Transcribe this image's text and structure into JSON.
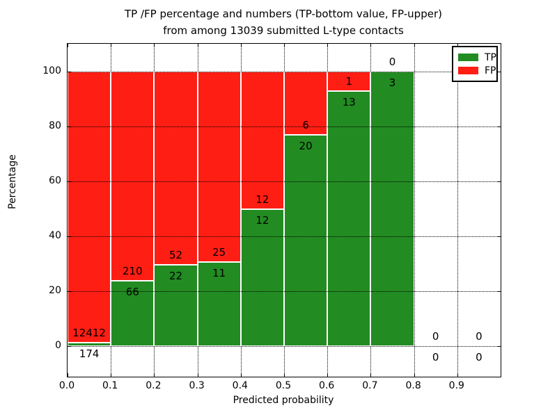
{
  "title": {
    "line1": "TP /FP percentage and numbers (TP-bottom value, FP-upper)",
    "line2": "from among 13039 submitted L-type contacts"
  },
  "axes": {
    "xlabel": "Predicted probability",
    "ylabel": "Percentage",
    "x_tick_labels": [
      "0.0",
      "0.1",
      "0.2",
      "0.3",
      "0.4",
      "0.5",
      "0.6",
      "0.7",
      "0.8",
      "0.9"
    ],
    "y_tick_labels": [
      "0",
      "20",
      "40",
      "60",
      "80",
      "100"
    ]
  },
  "legend": {
    "items": [
      {
        "label": "TP",
        "color": "#228b22"
      },
      {
        "label": "FP",
        "color": "#ff1e14"
      }
    ]
  },
  "colors": {
    "tp": "#228b22",
    "fp": "#ff1e14",
    "grid": "#000000",
    "background": "#ffffff",
    "bar_edge": "#ffffff"
  },
  "chart_data": {
    "type": "bar",
    "stacked": true,
    "title": "TP /FP percentage and numbers (TP-bottom value, FP-upper) from among 13039 submitted L-type contacts",
    "xlabel": "Predicted probability",
    "ylabel": "Percentage",
    "xlim": [
      0.0,
      1.0
    ],
    "ylim": [
      -11,
      110
    ],
    "bin_width": 0.1,
    "bins_start": [
      0.0,
      0.1,
      0.2,
      0.3,
      0.4,
      0.5,
      0.6,
      0.7,
      0.8,
      0.9
    ],
    "grid": true,
    "legend_position": "upper right",
    "total_contacts": 13039,
    "series": [
      {
        "name": "TP",
        "color": "#228b22",
        "counts": [
          174,
          66,
          22,
          11,
          12,
          20,
          13,
          3,
          0,
          0
        ]
      },
      {
        "name": "FP",
        "color": "#ff1e14",
        "counts": [
          12412,
          210,
          52,
          25,
          12,
          6,
          1,
          0,
          0,
          0
        ]
      }
    ],
    "tp_percent_of_bin": [
      1.38,
      23.91,
      29.73,
      30.56,
      50.0,
      76.92,
      92.86,
      100.0,
      0.0,
      0.0
    ],
    "y_tick_values": [
      0,
      20,
      40,
      60,
      80,
      100
    ],
    "x_tick_values": [
      0.0,
      0.1,
      0.2,
      0.3,
      0.4,
      0.5,
      0.6,
      0.7,
      0.8,
      0.9
    ]
  }
}
